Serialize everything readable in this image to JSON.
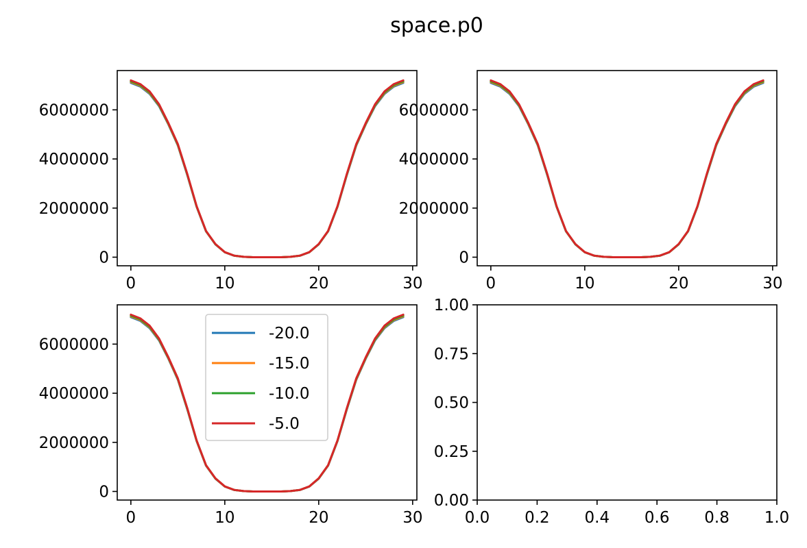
{
  "figure": {
    "suptitle": "space.p0"
  },
  "series_colors": {
    "-20.0": "#1f77b4",
    "-15.0": "#ff7f0e",
    "-10.0": "#2ca02c",
    "-5.0": "#d62728"
  },
  "chart_data": [
    {
      "type": "line",
      "position": "top-left",
      "xlim": [
        -1.45,
        30.45
      ],
      "ylim": [
        -350000,
        7600000
      ],
      "xticks": [
        0,
        10,
        20,
        30
      ],
      "yticks": [
        0,
        2000000,
        4000000,
        6000000
      ],
      "xtick_labels": [
        "0",
        "10",
        "20",
        "30"
      ],
      "ytick_labels": [
        "0",
        "2000000",
        "4000000",
        "6000000"
      ],
      "grid": false,
      "legend": null,
      "x": [
        0,
        1,
        2,
        3,
        4,
        5,
        6,
        7,
        8,
        9,
        10,
        11,
        12,
        13,
        14,
        15,
        16,
        17,
        18,
        19,
        20,
        21,
        22,
        23,
        24,
        25,
        26,
        27,
        28,
        29
      ],
      "series": [
        {
          "name": "-20.0",
          "values": [
            7100000,
            6950000,
            6650000,
            6150000,
            5400000,
            4550000,
            3350000,
            2050000,
            1050000,
            520000,
            200000,
            60000,
            15000,
            0,
            0,
            0,
            0,
            15000,
            60000,
            200000,
            520000,
            1050000,
            2050000,
            3350000,
            4550000,
            5400000,
            6150000,
            6650000,
            6950000,
            7100000
          ]
        },
        {
          "name": "-15.0",
          "values": [
            7130000,
            6980000,
            6680000,
            6180000,
            5420000,
            4570000,
            3370000,
            2060000,
            1060000,
            525000,
            202000,
            61000,
            15000,
            0,
            0,
            0,
            0,
            15000,
            61000,
            202000,
            525000,
            1060000,
            2060000,
            3370000,
            4570000,
            5420000,
            6180000,
            6680000,
            6980000,
            7130000
          ]
        },
        {
          "name": "-10.0",
          "values": [
            7160000,
            7010000,
            6710000,
            6200000,
            5440000,
            4590000,
            3380000,
            2070000,
            1065000,
            530000,
            204000,
            62000,
            15000,
            0,
            0,
            0,
            0,
            15000,
            62000,
            204000,
            530000,
            1065000,
            2070000,
            3380000,
            4590000,
            5440000,
            6200000,
            6710000,
            7010000,
            7160000
          ]
        },
        {
          "name": "-5.0",
          "values": [
            7200000,
            7050000,
            6750000,
            6230000,
            5460000,
            4610000,
            3400000,
            2080000,
            1070000,
            535000,
            206000,
            63000,
            16000,
            0,
            0,
            0,
            0,
            16000,
            63000,
            206000,
            535000,
            1070000,
            2080000,
            3400000,
            4610000,
            5460000,
            6230000,
            6750000,
            7050000,
            7200000
          ]
        }
      ]
    },
    {
      "type": "line",
      "position": "top-right",
      "xlim": [
        -1.45,
        30.45
      ],
      "ylim": [
        -350000,
        7600000
      ],
      "xticks": [
        0,
        10,
        20,
        30
      ],
      "yticks": [
        0,
        2000000,
        4000000,
        6000000
      ],
      "xtick_labels": [
        "0",
        "10",
        "20",
        "30"
      ],
      "ytick_labels": [
        "0",
        "2000000",
        "4000000",
        "6000000"
      ],
      "grid": false,
      "legend": null,
      "x": [
        0,
        1,
        2,
        3,
        4,
        5,
        6,
        7,
        8,
        9,
        10,
        11,
        12,
        13,
        14,
        15,
        16,
        17,
        18,
        19,
        20,
        21,
        22,
        23,
        24,
        25,
        26,
        27,
        28,
        29
      ],
      "series": [
        {
          "name": "-20.0",
          "values": [
            7100000,
            6950000,
            6650000,
            6150000,
            5400000,
            4550000,
            3350000,
            2050000,
            1050000,
            520000,
            200000,
            60000,
            15000,
            0,
            0,
            0,
            0,
            15000,
            60000,
            200000,
            520000,
            1050000,
            2050000,
            3350000,
            4550000,
            5400000,
            6150000,
            6650000,
            6950000,
            7100000
          ]
        },
        {
          "name": "-15.0",
          "values": [
            7130000,
            6980000,
            6680000,
            6180000,
            5420000,
            4570000,
            3370000,
            2060000,
            1060000,
            525000,
            202000,
            61000,
            15000,
            0,
            0,
            0,
            0,
            15000,
            61000,
            202000,
            525000,
            1060000,
            2060000,
            3370000,
            4570000,
            5420000,
            6180000,
            6680000,
            6980000,
            7130000
          ]
        },
        {
          "name": "-10.0",
          "values": [
            7160000,
            7010000,
            6710000,
            6200000,
            5440000,
            4590000,
            3380000,
            2070000,
            1065000,
            530000,
            204000,
            62000,
            15000,
            0,
            0,
            0,
            0,
            15000,
            62000,
            204000,
            530000,
            1065000,
            2070000,
            3380000,
            4590000,
            5440000,
            6200000,
            6710000,
            7010000,
            7160000
          ]
        },
        {
          "name": "-5.0",
          "values": [
            7200000,
            7050000,
            6750000,
            6230000,
            5460000,
            4610000,
            3400000,
            2080000,
            1070000,
            535000,
            206000,
            63000,
            16000,
            0,
            0,
            0,
            0,
            16000,
            63000,
            206000,
            535000,
            1070000,
            2080000,
            3400000,
            4610000,
            5460000,
            6230000,
            6750000,
            7050000,
            7200000
          ]
        }
      ]
    },
    {
      "type": "line",
      "position": "bottom-left",
      "xlim": [
        -1.45,
        30.45
      ],
      "ylim": [
        -350000,
        7600000
      ],
      "xticks": [
        0,
        10,
        20,
        30
      ],
      "yticks": [
        0,
        2000000,
        4000000,
        6000000
      ],
      "xtick_labels": [
        "0",
        "10",
        "20",
        "30"
      ],
      "ytick_labels": [
        "0",
        "2000000",
        "4000000",
        "6000000"
      ],
      "grid": false,
      "legend": "upper center",
      "x": [
        0,
        1,
        2,
        3,
        4,
        5,
        6,
        7,
        8,
        9,
        10,
        11,
        12,
        13,
        14,
        15,
        16,
        17,
        18,
        19,
        20,
        21,
        22,
        23,
        24,
        25,
        26,
        27,
        28,
        29
      ],
      "series": [
        {
          "name": "-20.0",
          "values": [
            7100000,
            6950000,
            6650000,
            6150000,
            5400000,
            4550000,
            3350000,
            2050000,
            1050000,
            520000,
            200000,
            60000,
            15000,
            0,
            0,
            0,
            0,
            15000,
            60000,
            200000,
            520000,
            1050000,
            2050000,
            3350000,
            4550000,
            5400000,
            6150000,
            6650000,
            6950000,
            7100000
          ]
        },
        {
          "name": "-15.0",
          "values": [
            7130000,
            6980000,
            6680000,
            6180000,
            5420000,
            4570000,
            3370000,
            2060000,
            1060000,
            525000,
            202000,
            61000,
            15000,
            0,
            0,
            0,
            0,
            15000,
            61000,
            202000,
            525000,
            1060000,
            2060000,
            3370000,
            4570000,
            5420000,
            6180000,
            6680000,
            6980000,
            7130000
          ]
        },
        {
          "name": "-10.0",
          "values": [
            7160000,
            7010000,
            6710000,
            6200000,
            5440000,
            4590000,
            3380000,
            2070000,
            1065000,
            530000,
            204000,
            62000,
            15000,
            0,
            0,
            0,
            0,
            15000,
            62000,
            204000,
            530000,
            1065000,
            2070000,
            3380000,
            4590000,
            5440000,
            6200000,
            6710000,
            7010000,
            7160000
          ]
        },
        {
          "name": "-5.0",
          "values": [
            7200000,
            7050000,
            6750000,
            6230000,
            5460000,
            4610000,
            3400000,
            2080000,
            1070000,
            535000,
            206000,
            63000,
            16000,
            0,
            0,
            0,
            0,
            16000,
            63000,
            206000,
            535000,
            1070000,
            2080000,
            3400000,
            4610000,
            5460000,
            6230000,
            6750000,
            7050000,
            7200000
          ]
        }
      ]
    },
    {
      "type": "line",
      "position": "bottom-right",
      "xlim": [
        0,
        1
      ],
      "ylim": [
        0,
        1
      ],
      "xticks": [
        0,
        0.2,
        0.4,
        0.6,
        0.8,
        1.0
      ],
      "yticks": [
        0,
        0.25,
        0.5,
        0.75,
        1.0
      ],
      "xtick_labels": [
        "0.0",
        "0.2",
        "0.4",
        "0.6",
        "0.8",
        "1.0"
      ],
      "ytick_labels": [
        "0.00",
        "0.25",
        "0.50",
        "0.75",
        "1.00"
      ],
      "grid": false,
      "legend": null,
      "x": [],
      "series": []
    }
  ]
}
